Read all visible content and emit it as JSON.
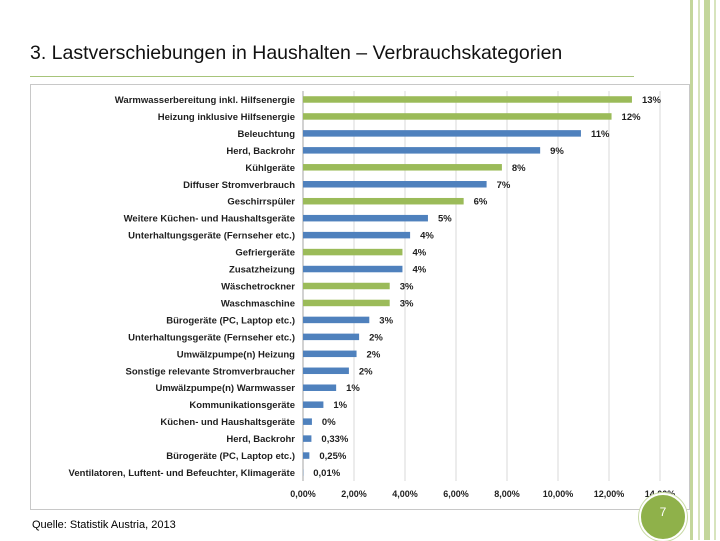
{
  "slide": {
    "title": "3. Lastverschiebungen in Haushalten – Verbrauchskategorien",
    "source": "Quelle: Statistik Austria, 2013",
    "page_number": "7"
  },
  "colors": {
    "green_series": "#9bbb59",
    "blue_series": "#4f81bd",
    "accent_rule": "#a7c47a"
  },
  "chart_data": {
    "type": "bar",
    "orientation": "horizontal",
    "title": "",
    "xlabel": "",
    "ylabel": "",
    "xlim": [
      0,
      14
    ],
    "x_ticks": [
      "0,00%",
      "2,00%",
      "4,00%",
      "6,00%",
      "8,00%",
      "10,00%",
      "12,00%",
      "14,00%"
    ],
    "grid": true,
    "legend": "none",
    "categories": [
      "Warmwasserbereitung inkl. Hilfsenergie",
      "Heizung inklusive Hilfsenergie",
      "Beleuchtung",
      "Herd, Backrohr",
      "Kühlgeräte",
      "Diffuser Stromverbrauch",
      "Geschirrspüler",
      "Weitere Küchen- und Haushaltsgeräte",
      "Unterhaltungsgeräte (Fernseher etc.)",
      "Gefriergeräte",
      "Zusatzheizung",
      "Wäschetrockner",
      "Waschmaschine",
      "Bürogeräte (PC, Laptop etc.)",
      "Unterhaltungsgeräte (Fernseher etc.)",
      "Umwälzpumpe(n) Heizung",
      "Sonstige relevante Stromverbraucher",
      "Umwälzpumpe(n) Warmwasser",
      "Kommunikationsgeräte",
      "Küchen- und Haushaltsgeräte",
      "Herd, Backrohr",
      "Bürogeräte (PC, Laptop etc.)",
      "Ventilatoren, Luftent- und Befeuchter, Klimageräte"
    ],
    "values": [
      12.9,
      12.1,
      10.9,
      9.3,
      7.8,
      7.2,
      6.3,
      4.9,
      4.2,
      3.9,
      3.9,
      3.4,
      3.4,
      2.6,
      2.2,
      2.1,
      1.8,
      1.3,
      0.8,
      0.35,
      0.33,
      0.25,
      0.01
    ],
    "data_labels": [
      "13%",
      "12%",
      "11%",
      "9%",
      "8%",
      "7%",
      "6%",
      "5%",
      "4%",
      "4%",
      "4%",
      "3%",
      "3%",
      "3%",
      "2%",
      "2%",
      "2%",
      "1%",
      "1%",
      "0%",
      "0,33%",
      "0,25%",
      "0,01%"
    ],
    "bar_colors": [
      "green",
      "green",
      "blue",
      "blue",
      "green",
      "blue",
      "green",
      "blue",
      "blue",
      "green",
      "blue",
      "green",
      "green",
      "blue",
      "blue",
      "blue",
      "blue",
      "blue",
      "blue",
      "blue",
      "blue",
      "blue",
      "blue"
    ]
  }
}
